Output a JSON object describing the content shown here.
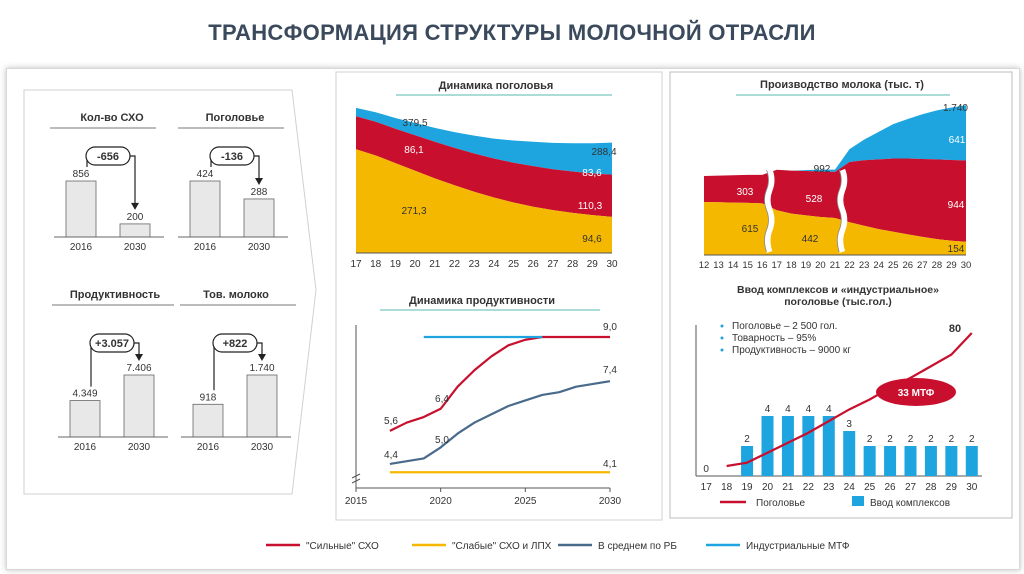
{
  "title": "ТРАНСФОРМАЦИЯ СТРУКТУРЫ МОЛОЧНОЙ ОТРАСЛИ",
  "colors": {
    "red": "#c8102e",
    "yellow": "#f5b800",
    "blue": "#1ea5e0",
    "navy": "#4a6a8c",
    "bar": "#e8e8e8"
  },
  "chart_data": [
    {
      "type": "bar",
      "title": "Кол-во СХО",
      "categories": [
        "2016",
        "2030"
      ],
      "values": [
        856,
        200
      ],
      "value_labels": [
        "856",
        "200"
      ],
      "change": "-656"
    },
    {
      "type": "bar",
      "title": "Поголовье",
      "categories": [
        "2016",
        "2030"
      ],
      "values": [
        424,
        288
      ],
      "value_labels": [
        "424",
        "288"
      ],
      "change": "-136"
    },
    {
      "type": "bar",
      "title": "Продуктивность",
      "categories": [
        "2016",
        "2030"
      ],
      "values": [
        4349,
        7406
      ],
      "value_labels": [
        "4.349",
        "7.406"
      ],
      "change": "+3.057"
    },
    {
      "type": "bar",
      "title": "Тов. молоко",
      "categories": [
        "2016",
        "2030"
      ],
      "values": [
        918,
        1740
      ],
      "value_labels": [
        "918",
        "1.740"
      ],
      "change": "+822"
    },
    {
      "type": "area",
      "title": "Динамика поголовья",
      "x": [
        "17",
        "18",
        "19",
        "20",
        "21",
        "22",
        "23",
        "24",
        "25",
        "26",
        "27",
        "28",
        "29",
        "30"
      ],
      "series": [
        {
          "name": "\"Слабые\" СХО и ЛПХ",
          "values": [
            271.3,
            255,
            235,
            215,
            195,
            177,
            160,
            145,
            132,
            121,
            112,
            105,
            99,
            94.6
          ]
        },
        {
          "name": "\"Сильные\" СХО",
          "values": [
            86.1,
            88,
            90,
            93,
            96,
            98,
            100,
            102,
            104,
            106,
            107,
            108,
            109,
            110.3
          ]
        },
        {
          "name": "Индустриальные МТФ",
          "values": [
            22.1,
            25,
            28,
            32,
            36,
            41,
            47,
            52,
            58,
            64,
            69,
            74,
            79,
            83.6
          ]
        }
      ],
      "totals": {
        "start": "379,5",
        "end": "288,4"
      },
      "labels": {
        "yellow_start": "271,3",
        "red_start": "86,1",
        "yellow_end": "94,6",
        "red_end": "110,3",
        "blue_end": "83,6"
      }
    },
    {
      "type": "area",
      "title": "Производство молока (тыс. т)",
      "x": [
        "12",
        "13",
        "14",
        "15",
        "16",
        "17",
        "18",
        "19",
        "20",
        "21",
        "22",
        "23",
        "24",
        "25",
        "26",
        "27",
        "28",
        "29",
        "30"
      ],
      "series": [
        {
          "name": "\"Слабые\" СХО и ЛПХ",
          "values": [
            615,
            612,
            608,
            605,
            600,
            520,
            480,
            460,
            442,
            430,
            380,
            340,
            300,
            270,
            240,
            210,
            185,
            165,
            154
          ]
        },
        {
          "name": "\"Сильные\" СХО",
          "values": [
            303,
            310,
            318,
            325,
            330,
            470,
            500,
            515,
            528,
            535,
            700,
            760,
            810,
            850,
            880,
            905,
            925,
            938,
            944
          ]
        },
        {
          "name": "Индустриальные МТФ",
          "values": [
            0,
            0,
            0,
            0,
            0,
            0,
            0,
            10,
            22,
            27,
            150,
            240,
            320,
            400,
            460,
            520,
            570,
            610,
            641
          ]
        }
      ],
      "total_labels": {
        "mid": "992",
        "end": "1.740"
      },
      "labels": {
        "yellow_start": "615",
        "red_start": "303",
        "yellow_mid": "442",
        "red_mid": "528",
        "red_end": "944",
        "blue_end": "641",
        "yellow_end": "154"
      }
    },
    {
      "type": "line",
      "title": "Динамика продуктивности",
      "x_ticks": [
        "2015",
        "2020",
        "2025",
        "2030"
      ],
      "xlim": [
        2015,
        2030
      ],
      "series": [
        {
          "name": "\"Сильные\" СХО",
          "x": [
            2017,
            2018,
            2019,
            2020,
            2021,
            2022,
            2023,
            2024,
            2025,
            2026,
            2027,
            2028,
            2029,
            2030
          ],
          "values": [
            5.6,
            5.9,
            6.1,
            6.4,
            7.2,
            7.8,
            8.3,
            8.7,
            8.9,
            9.0,
            9.0,
            9.0,
            9.0,
            9.0
          ]
        },
        {
          "name": "В среднем по РБ",
          "x": [
            2017,
            2018,
            2019,
            2020,
            2021,
            2022,
            2023,
            2024,
            2025,
            2026,
            2027,
            2028,
            2029,
            2030
          ],
          "values": [
            4.4,
            4.5,
            4.6,
            5.0,
            5.5,
            5.9,
            6.2,
            6.5,
            6.7,
            6.9,
            7.0,
            7.2,
            7.3,
            7.4
          ]
        },
        {
          "name": "\"Слабые\" СХО и ЛПХ",
          "x": [
            2017,
            2030
          ],
          "values": [
            4.1,
            4.1
          ]
        },
        {
          "name": "Индустриальные МТФ",
          "x": [
            2019,
            2026
          ],
          "values": [
            9.0,
            9.0
          ]
        }
      ],
      "point_labels": [
        "5,6",
        "6,4",
        "9,0",
        "4,4",
        "5,0",
        "7,4",
        "4,1"
      ]
    },
    {
      "type": "bar",
      "title": "Ввод комплексов и «индустриальное» поголовье (тыс.гол.)",
      "categories": [
        "17",
        "18",
        "19",
        "20",
        "21",
        "22",
        "23",
        "24",
        "25",
        "26",
        "27",
        "28",
        "29",
        "30"
      ],
      "values": [
        0,
        0,
        2,
        4,
        4,
        4,
        4,
        3,
        2,
        2,
        2,
        2,
        2,
        2
      ],
      "value_labels": [
        "0",
        "",
        "2",
        "4",
        "4",
        "4",
        "4",
        "3",
        "2",
        "2",
        "2",
        "2",
        "2",
        "2"
      ],
      "line_series": {
        "name": "Поголовье",
        "values": [
          null,
          0,
          2,
          8,
          14,
          20,
          27,
          34,
          40,
          47,
          53,
          60,
          67,
          80
        ],
        "end_label": "80"
      },
      "bullets": [
        "Поголовье – 2 500 гол.",
        "Товарность – 95%",
        "Продуктивность – 9000 кг"
      ],
      "badge": "33 МТФ",
      "legend": [
        "Поголовье",
        "Ввод комплексов"
      ]
    }
  ],
  "legend": [
    {
      "name": "\"Сильные\" СХО",
      "color": "#c8102e"
    },
    {
      "name": "\"Слабые\" СХО и ЛПХ",
      "color": "#f5b800"
    },
    {
      "name": "В среднем по РБ",
      "color": "#4a6a8c"
    },
    {
      "name": "Индустриальные МТФ",
      "color": "#1ea5e0"
    }
  ]
}
